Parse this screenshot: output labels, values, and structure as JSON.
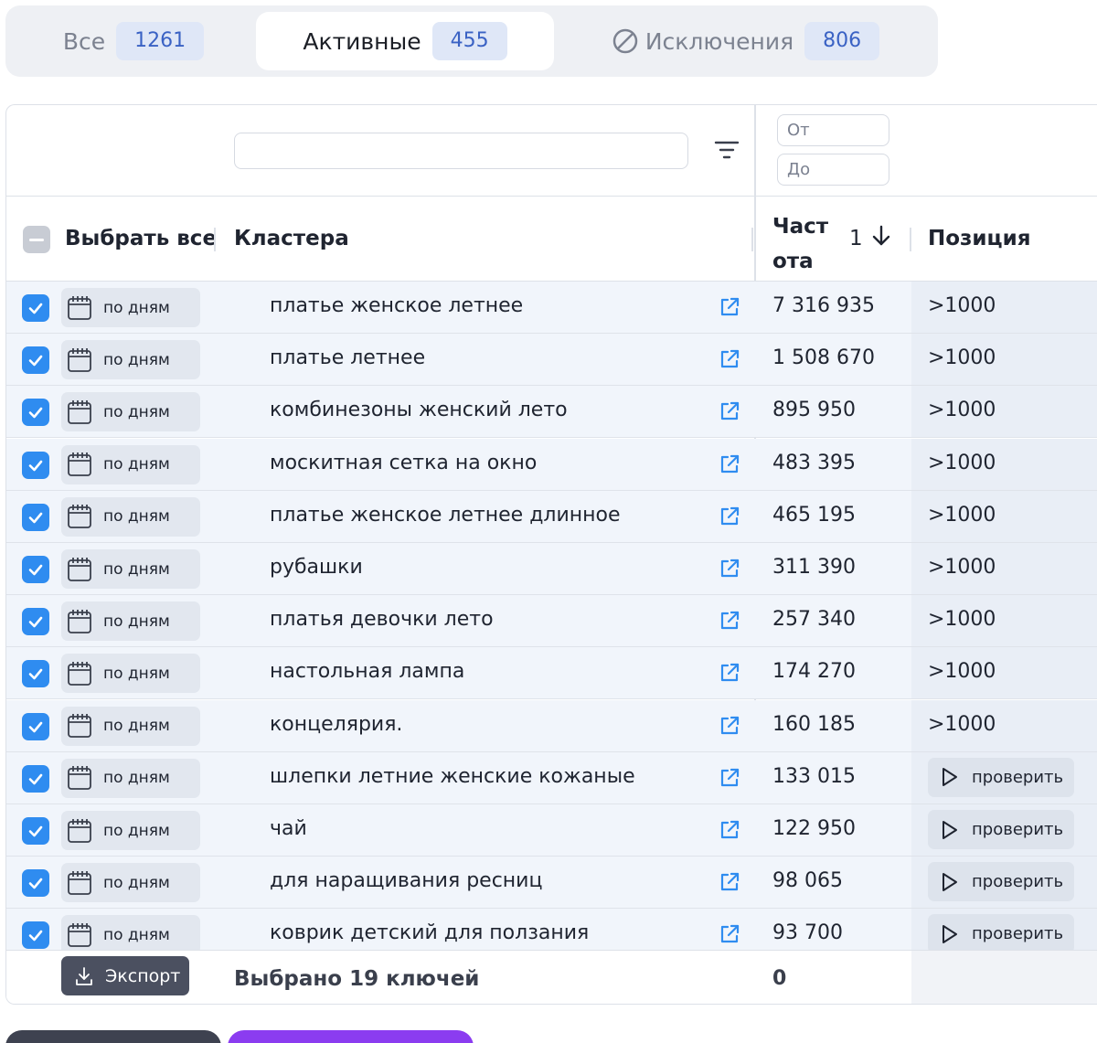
{
  "tabs": {
    "all": {
      "label": "Все",
      "count": "1261"
    },
    "active": {
      "label": "Активные",
      "count": "455"
    },
    "exclusions": {
      "label": "Исключения",
      "count": "806"
    }
  },
  "filters": {
    "search_value": "",
    "from_placeholder": "От",
    "to_placeholder": "До"
  },
  "header": {
    "select_all": "Выбрать все",
    "clusters": "Кластера",
    "frequency": "Частота",
    "sort_index": "1",
    "position": "Позиция"
  },
  "row_button_label": "по дням",
  "check_label": "проверить",
  "rows": [
    {
      "keyword": "платье женское летнее",
      "frequency": "7 316 935",
      "position": ">1000"
    },
    {
      "keyword": "платье летнее",
      "frequency": "1 508 670",
      "position": ">1000"
    },
    {
      "keyword": "комбинезоны женский лето",
      "frequency": "895 950",
      "position": ">1000"
    },
    {
      "keyword": "москитная сетка на окно",
      "frequency": "483 395",
      "position": ">1000"
    },
    {
      "keyword": "платье женское летнее длинное",
      "frequency": "465 195",
      "position": ">1000"
    },
    {
      "keyword": "рубашки",
      "frequency": "311 390",
      "position": ">1000"
    },
    {
      "keyword": "платья девочки лето",
      "frequency": "257 340",
      "position": ">1000"
    },
    {
      "keyword": "настольная лампа",
      "frequency": "174 270",
      "position": ">1000"
    },
    {
      "keyword": "концелярия.",
      "frequency": "160 185",
      "position": ">1000"
    },
    {
      "keyword": "шлепки летние женские кожаные",
      "frequency": "133 015",
      "position": null
    },
    {
      "keyword": "чай",
      "frequency": "122 950",
      "position": null
    },
    {
      "keyword": "для наращивания ресниц",
      "frequency": "98 065",
      "position": null
    },
    {
      "keyword": "коврик детский для ползания",
      "frequency": "93 700",
      "position": null
    }
  ],
  "footer": {
    "export_label": "Экспорт",
    "selected_text": "Выбрано 19 ключей",
    "sum_frequency": "0"
  },
  "colors": {
    "accent": "#2f8cf0",
    "badge_bg": "#dfe7f7",
    "purple": "#8b3cf0"
  },
  "icons": [
    "no-entry-icon",
    "filter-icon",
    "arrow-down-icon",
    "checkbox-icon",
    "calendar-icon",
    "external-link-icon",
    "play-icon",
    "download-icon"
  ]
}
